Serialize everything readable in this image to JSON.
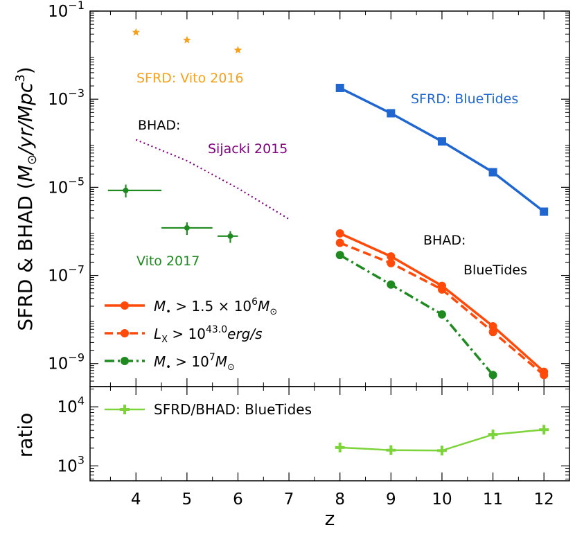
{
  "chart_data": [
    {
      "type": "line",
      "panel": "top",
      "ylabel_text": "SFRD & BHAD (",
      "ylabel_unit": "M",
      "ylabel_sub": "⊙",
      "ylabel_unit2": "/yr/Mpc",
      "ylabel_sup": "3",
      "ylabel_close": ")",
      "ylabel": "SFRD & BHAD (M⊙/yr/Mpc3)",
      "yscale": "log",
      "ylim": [
        3e-10,
        0.1
      ],
      "xlim": [
        3.1,
        12.5
      ],
      "yticks": [
        {
          "value": 1e-09,
          "base": "10",
          "exp": "−9"
        },
        {
          "value": 1e-07,
          "base": "10",
          "exp": "−7"
        },
        {
          "value": 1e-05,
          "base": "10",
          "exp": "−5"
        },
        {
          "value": 0.001,
          "base": "10",
          "exp": "−3"
        },
        {
          "value": 0.1,
          "base": "10",
          "exp": "−1"
        }
      ],
      "series": [
        {
          "name": "SFRD: BlueTides",
          "color": "#1f66d0",
          "x": [
            8,
            9,
            10,
            11,
            12
          ],
          "y": [
            0.0018,
            0.00048,
            0.00011,
            2.2e-05,
            2.8e-06
          ],
          "marker": "square",
          "linestyle": "solid"
        },
        {
          "name": "M• > 1.5 × 10^6 M⊙",
          "color": "#ff4a0a",
          "x": [
            8,
            9,
            10,
            11,
            12
          ],
          "y": [
            9e-07,
            2.7e-07,
            5.8e-08,
            7e-09,
            6.5e-10
          ],
          "marker": "circle",
          "linestyle": "solid"
        },
        {
          "name": "L_X > 10^43.0 erg/s",
          "color": "#ff4a0a",
          "x": [
            8,
            9,
            10,
            11,
            12
          ],
          "y": [
            5.5e-07,
            1.9e-07,
            4.8e-08,
            5.2e-09,
            5.5e-10
          ],
          "marker": "circle",
          "linestyle": "dashed"
        },
        {
          "name": "M• > 10^7 M⊙",
          "color": "#1f8a1f",
          "x": [
            8,
            9,
            10,
            11
          ],
          "y": [
            2.9e-07,
            6.2e-08,
            1.3e-08,
            5.5e-10
          ],
          "marker": "circle",
          "linestyle": "dashdot"
        },
        {
          "name": "SFRD: Vito 2016",
          "color": "#f5a11a",
          "x": [
            4,
            5,
            6
          ],
          "y": [
            0.033,
            0.022,
            0.013
          ],
          "marker": "star",
          "linestyle": "none"
        },
        {
          "name": "BHAD: Sijacki 2015",
          "color": "#800080",
          "x": [
            4,
            5,
            6,
            7
          ],
          "y": [
            0.00012,
            4e-05,
            9.5e-06,
            1.9e-06
          ],
          "marker": "none",
          "linestyle": "dotted"
        },
        {
          "name": "Vito 2017",
          "color": "#1f8a1f",
          "x": [
            3.8,
            5.0,
            5.85
          ],
          "y": [
            8.5e-06,
            1.2e-06,
            7.8e-07
          ],
          "xerr_low": [
            3.45,
            4.5,
            5.6
          ],
          "xerr_high": [
            4.5,
            5.5,
            6.0
          ],
          "yerr_low": [
            5.9e-06,
            8.3e-07,
            5.5e-07
          ],
          "yerr_high": [
            1.15e-05,
            1.6e-06,
            1.01e-06
          ],
          "marker": "point",
          "linestyle": "none"
        }
      ],
      "annotations": [
        {
          "text": "SFRD: Vito 2016",
          "color": "#f5a11a"
        },
        {
          "text": "SFRD: BlueTides",
          "color": "#1f66d0"
        },
        {
          "text": "BHAD:",
          "color": "#000000"
        },
        {
          "text": "Sijacki 2015",
          "color": "#800080"
        },
        {
          "text": "Vito 2017",
          "color": "#1f8a1f"
        },
        {
          "text": "BHAD:",
          "color": "#000000"
        },
        {
          "text": "BlueTides",
          "color": "#000000"
        }
      ],
      "legend": {
        "position": "lower-left",
        "entries": [
          {
            "pre": "M",
            "sub": "•",
            "mid": " > 1.5 × 10",
            "sup": "6",
            "post": "M",
            "post_sub": "⊙",
            "color": "#ff4a0a",
            "style": "solid"
          },
          {
            "pre": "L",
            "sub": "X",
            "mid": " > 10",
            "sup": "43.0",
            "post": "erg/s",
            "post_sub": "",
            "color": "#ff4a0a",
            "style": "dashed"
          },
          {
            "pre": "M",
            "sub": "•",
            "mid": " > 10",
            "sup": "7",
            "post": "M",
            "post_sub": "⊙",
            "color": "#1f8a1f",
            "style": "dashdot"
          }
        ]
      }
    },
    {
      "type": "line",
      "panel": "bottom",
      "ylabel": "ratio",
      "yscale": "log",
      "ylim": [
        560,
        22000
      ],
      "xlim": [
        3.1,
        12.5
      ],
      "xlabel": "z",
      "xticks": [
        4,
        5,
        6,
        7,
        8,
        9,
        10,
        11,
        12
      ],
      "yticks": [
        {
          "value": 1000,
          "base": "10",
          "exp": "3"
        },
        {
          "value": 10000,
          "base": "10",
          "exp": "4"
        }
      ],
      "series": [
        {
          "name": "SFRD/BHAD: BlueTides",
          "color": "#7cd33a",
          "x": [
            8,
            9,
            10,
            11,
            12
          ],
          "y": [
            2050,
            1850,
            1820,
            3400,
            4100
          ],
          "marker": "plus",
          "linestyle": "solid"
        }
      ],
      "legend": {
        "position": "top-left",
        "entries": [
          {
            "label": "SFRD/BHAD: BlueTides",
            "color": "#7cd33a"
          }
        ]
      }
    }
  ]
}
